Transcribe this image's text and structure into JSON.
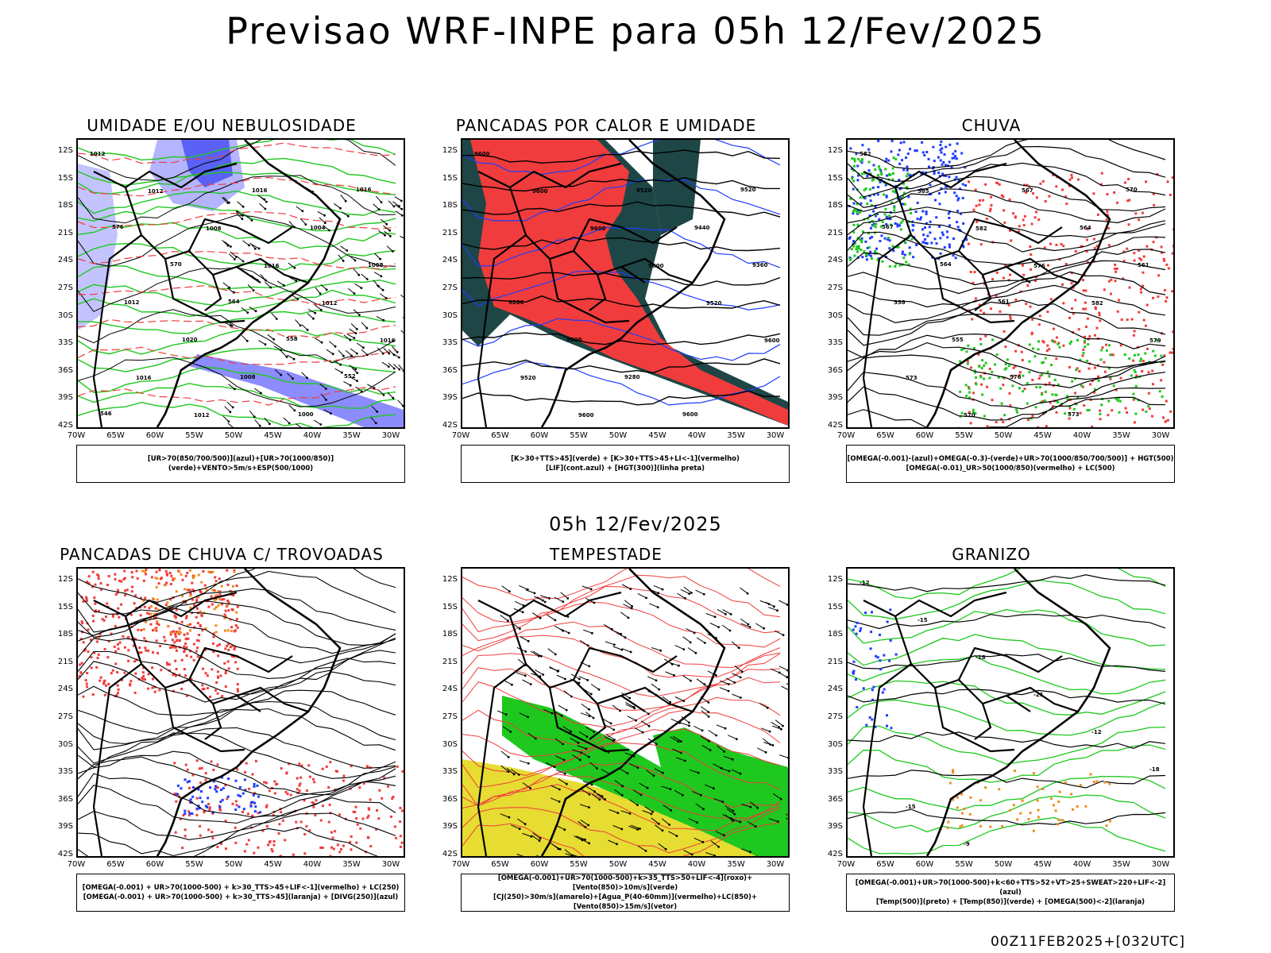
{
  "header": {
    "title": "Previsao WRF-INPE  para 05h 12/Fev/2025",
    "subtitle": "05h 12/Fev/2025",
    "footer": "00Z11FEB2025+[032UTC]"
  },
  "axes": {
    "lat_labels": [
      "12S",
      "15S",
      "18S",
      "21S",
      "24S",
      "27S",
      "30S",
      "33S",
      "36S",
      "39S",
      "42S"
    ],
    "lon_labels": [
      "70W",
      "65W",
      "60W",
      "55W",
      "50W",
      "45W",
      "40W",
      "35W",
      "30W"
    ]
  },
  "panels": [
    {
      "id": "umidade",
      "title": "UMIDADE E/OU NEBULOSIDADE",
      "legend": [
        "[UR>70(850/700/500)](azul)+[UR>70(1000/850)](verde)+VENTO>5m/s+ESP(500/1000)"
      ],
      "labels": [
        "1012",
        "1012",
        "1008",
        "1016",
        "1012",
        "1016",
        "1016",
        "1012",
        "1016",
        "1004",
        "1008",
        "1012",
        "1020",
        "1008",
        "1000",
        "1016",
        "576",
        "570",
        "564",
        "558",
        "552",
        "546"
      ]
    },
    {
      "id": "pancadas-calor",
      "title": "PANCADAS POR CALOR E UMIDADE",
      "legend": [
        "[K>30+TTS>45](verde) + [K>30+TTS>45+LI<-1](vermelho)",
        "[LIF](cont.azul) + [HGT(300)](linha preta)"
      ],
      "labels": [
        "9600",
        "9600",
        "9600",
        "9600",
        "9520",
        "9600",
        "9520",
        "9600",
        "9520",
        "9440",
        "9360",
        "9280",
        "9200",
        "9280",
        "9600",
        "9520"
      ]
    },
    {
      "id": "chuva",
      "title": "CHUVA",
      "legend": [
        "[OMEGA(-0.001)-(azul)+OMEGA(-0.3)-(verde)+UR>70(1000/850/700/500)] + HGT(500)",
        "[OMEGA(-0.01)_UR>50(1000/850)(vermelho) + LC(500)"
      ],
      "labels": [
        "582",
        "585",
        "582",
        "576",
        "582",
        "579",
        "573",
        "570",
        "567",
        "564",
        "561",
        "558",
        "555",
        "576",
        "573",
        "570",
        "567",
        "564",
        "561"
      ]
    },
    {
      "id": "trovoadas",
      "title": "PANCADAS DE CHUVA C/ TROVOADAS",
      "legend": [
        "[OMEGA(-0.001) + UR>70(1000-500) + k>30_TTS>45+LIF<-1](vermelho) + LC(250)",
        "[OMEGA(-0.001) + UR>70(1000-500) + k>30_TTS>45](laranja) + [DIVG(250)](azul)"
      ],
      "labels": []
    },
    {
      "id": "tempestade",
      "title": "TEMPESTADE",
      "legend": [
        "[OMEGA(-0.001)+UR>70(1000-500)+k>35_TTS>50+LIF<-4](roxo)+[Vento(850)>10m/s](verde)",
        "[CJ(250)>30m/s](amarelo)+[Agua_P(40-60mm)](vermelho)+LC(850)+[Vento(850)>15m/s](vetor)"
      ],
      "labels": []
    },
    {
      "id": "granizo",
      "title": "GRANIZO",
      "legend": [
        "[OMEGA(-0.001)+UR>70(1000-500)+k<60+TTS>52+VT>25+SWEAT>220+LIF<-2](azul)",
        "[Temp(500)](preto) + [Temp(850)](verde) + [OMEGA(500)<-2](laranja)"
      ],
      "labels": [
        "-12",
        "-15",
        "-18",
        "-21",
        "-12",
        "-18",
        "-15",
        "-9"
      ]
    }
  ],
  "colors": {
    "red": "#f03c3c",
    "green": "#1ec81e",
    "blue": "#1e3cff",
    "lightblue": "#b4b4ff",
    "darkteal": "#1e4646",
    "yellow": "#e6dc32",
    "orange": "#f08c1e",
    "purple": "#a01ed2"
  }
}
